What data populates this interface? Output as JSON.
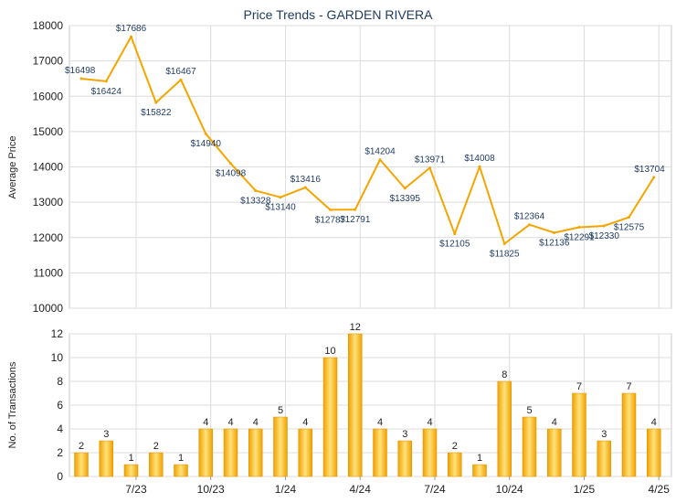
{
  "chart_data": [
    {
      "type": "line",
      "title": "Price Trends - GARDEN RIVERA",
      "xlabel": "",
      "ylabel": "Average Price",
      "ylim": [
        10000,
        18000
      ],
      "y_ticks": [
        "10000",
        "11000",
        "12000",
        "13000",
        "14000",
        "15000",
        "16000",
        "17000",
        "18000"
      ],
      "x_tick_labels": [
        "7/23",
        "10/23",
        "1/24",
        "4/24",
        "7/24",
        "10/24",
        "1/25",
        "4/25"
      ],
      "grid": true,
      "color": "#f5a500",
      "values": [
        16498,
        16424,
        17686,
        15822,
        16467,
        14940,
        14098,
        13328,
        13140,
        13416,
        12787,
        12791,
        14204,
        13395,
        13971,
        12105,
        14008,
        11825,
        12364,
        12136,
        12291,
        12330,
        12575,
        13704
      ],
      "labels": [
        "$16498",
        "$16424",
        "$17686",
        "$15822",
        "$16467",
        "$14940",
        "$14098",
        "$13328",
        "$13140",
        "$13416",
        "$12787",
        "$12791",
        "$14204",
        "$13395",
        "$13971",
        "$12105",
        "$14008",
        "$11825",
        "$12364",
        "$12136",
        "$12291",
        "$12330",
        "$12575",
        "$13704"
      ]
    },
    {
      "type": "bar",
      "title": "",
      "xlabel": "",
      "ylabel": "No. of Transactions",
      "ylim": [
        0,
        12
      ],
      "y_ticks": [
        "0",
        "2",
        "4",
        "6",
        "8",
        "10",
        "12"
      ],
      "x_tick_labels": [
        "7/23",
        "10/23",
        "1/24",
        "4/24",
        "7/24",
        "10/24",
        "1/25",
        "4/25"
      ],
      "grid": true,
      "color": "#f5a500",
      "values": [
        2,
        3,
        1,
        2,
        1,
        4,
        4,
        4,
        5,
        4,
        10,
        12,
        4,
        3,
        4,
        2,
        1,
        8,
        5,
        4,
        7,
        3,
        7,
        4
      ],
      "labels": [
        "2",
        "3",
        "1",
        "2",
        "1",
        "4",
        "4",
        "4",
        "5",
        "4",
        "10",
        "12",
        "4",
        "3",
        "4",
        "2",
        "1",
        "8",
        "5",
        "4",
        "7",
        "3",
        "7",
        "4"
      ]
    }
  ]
}
